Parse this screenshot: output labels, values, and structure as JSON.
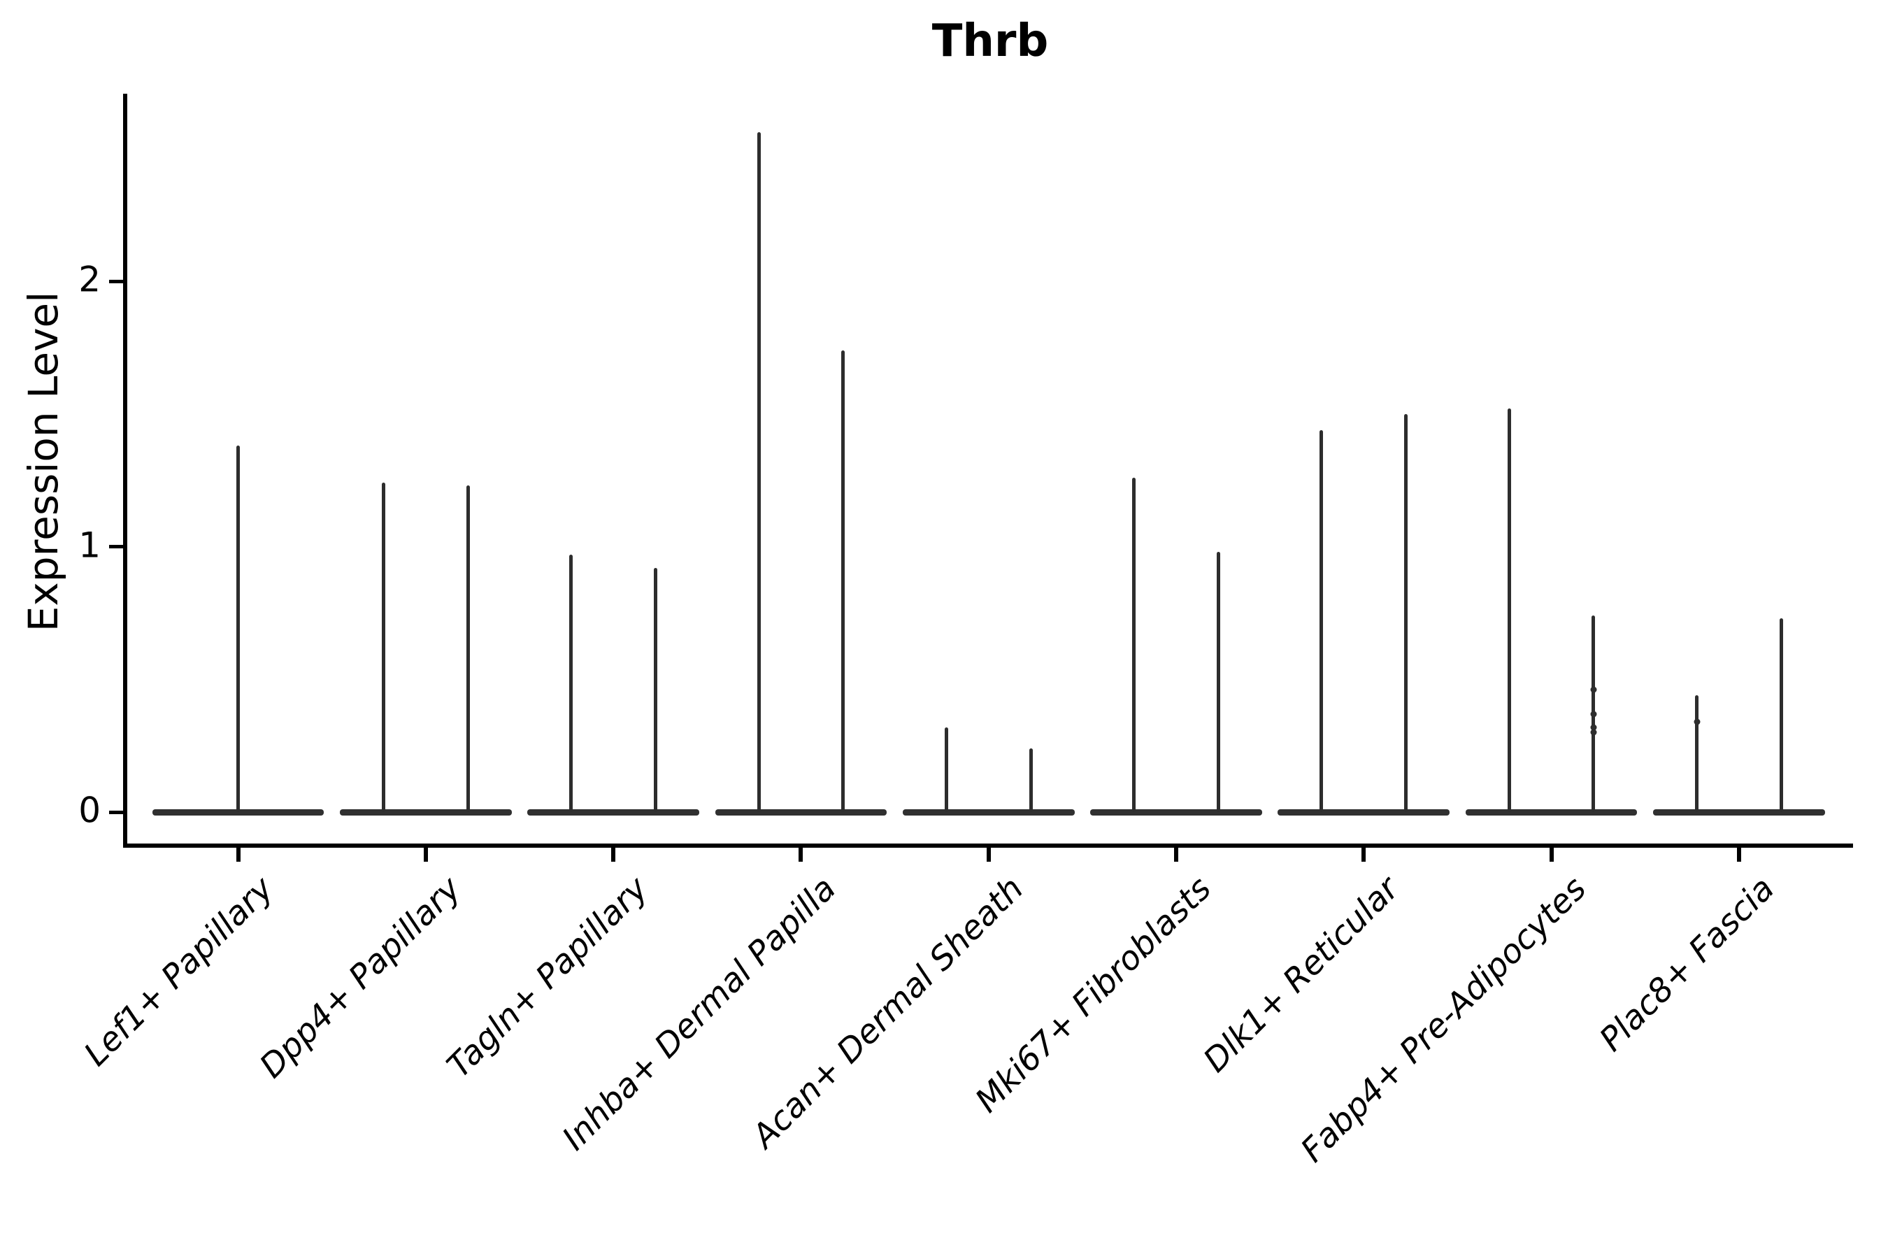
{
  "chart_data": {
    "type": "violin",
    "title": "Thrb",
    "ylabel": "Expression Level",
    "xlabel": "",
    "yticks": [
      0,
      1,
      2
    ],
    "ylim": [
      -0.13,
      2.71
    ],
    "grid": false,
    "legend": "none",
    "style": "seurat-vlnplot, collapsed violins drawn as flat base at 0 with thin density spikes",
    "ink_color": "#2d2d2d",
    "categories": [
      "Lef1+ Papillary",
      "Dpp4+ Papillary",
      "Tagln+ Papillary",
      "Inhba+ Dermal Papilla",
      "Acan+ Dermal Sheath",
      "Mki67+ Fibroblasts",
      "Dlk1+ Reticular",
      "Fabp4+ Pre-Adipocytes",
      "Plac8+ Fascia"
    ],
    "violins": [
      {
        "category": "Lef1+ Papillary",
        "base_halfwidth": 0.458,
        "spikes": [
          {
            "dx": 0.0,
            "max": 1.38,
            "points": []
          }
        ]
      },
      {
        "category": "Dpp4+ Papillary",
        "base_halfwidth": 0.458,
        "spikes": [
          {
            "dx": -0.225,
            "max": 1.24,
            "points": []
          },
          {
            "dx": 0.225,
            "max": 1.23,
            "points": []
          }
        ]
      },
      {
        "category": "Tagln+ Papillary",
        "base_halfwidth": 0.458,
        "spikes": [
          {
            "dx": -0.225,
            "max": 0.97,
            "points": []
          },
          {
            "dx": 0.225,
            "max": 0.92,
            "points": []
          }
        ]
      },
      {
        "category": "Inhba+ Dermal Papilla",
        "base_halfwidth": 0.458,
        "spikes": [
          {
            "dx": -0.225,
            "max": 2.56,
            "points": []
          },
          {
            "dx": 0.225,
            "max": 1.74,
            "points": []
          }
        ]
      },
      {
        "category": "Acan+ Dermal Sheath",
        "base_halfwidth": 0.458,
        "spikes": [
          {
            "dx": -0.225,
            "max": 0.32,
            "points": []
          },
          {
            "dx": 0.225,
            "max": 0.24,
            "points": []
          }
        ]
      },
      {
        "category": "Mki67+ Fibroblasts",
        "base_halfwidth": 0.458,
        "spikes": [
          {
            "dx": -0.225,
            "max": 1.26,
            "points": []
          },
          {
            "dx": 0.225,
            "max": 0.98,
            "points": []
          }
        ]
      },
      {
        "category": "Dlk1+ Reticular",
        "base_halfwidth": 0.458,
        "spikes": [
          {
            "dx": -0.225,
            "max": 1.44,
            "points": []
          },
          {
            "dx": 0.225,
            "max": 1.5,
            "points": []
          }
        ]
      },
      {
        "category": "Fabp4+ Pre-Adipocytes",
        "base_halfwidth": 0.458,
        "spikes": [
          {
            "dx": -0.225,
            "max": 1.52,
            "points": []
          },
          {
            "dx": 0.225,
            "max": 0.74,
            "points": [
              0.46,
              0.37,
              0.32,
              0.3
            ]
          }
        ]
      },
      {
        "category": "Plac8+ Fascia",
        "base_halfwidth": 0.458,
        "spikes": [
          {
            "dx": -0.225,
            "max": 0.44,
            "points": [
              0.34
            ]
          },
          {
            "dx": 0.225,
            "max": 0.73,
            "points": []
          }
        ]
      }
    ]
  }
}
